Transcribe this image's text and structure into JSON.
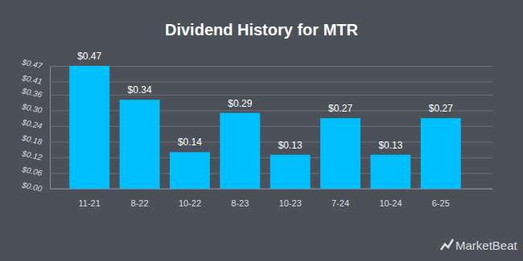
{
  "chart_data": {
    "type": "bar",
    "title": "Dividend History for MTR",
    "categories": [
      "11-21",
      "8-22",
      "10-22",
      "8-23",
      "10-23",
      "7-24",
      "10-24",
      "6-25"
    ],
    "values": [
      0.47,
      0.34,
      0.14,
      0.29,
      0.13,
      0.27,
      0.13,
      0.27
    ],
    "value_labels": [
      "$0.47",
      "$0.34",
      "$0.14",
      "$0.29",
      "$0.13",
      "$0.27",
      "$0.13",
      "$0.27"
    ],
    "data_labels": true,
    "color": "#00bfff",
    "ylim": [
      0,
      0.47
    ],
    "yticks": [
      {
        "value": 0,
        "label": "$0.00"
      },
      {
        "value": 0.06,
        "label": "$0.06"
      },
      {
        "value": 0.12,
        "label": "$0.12"
      },
      {
        "value": 0.18,
        "label": "$0.18"
      },
      {
        "value": 0.24,
        "label": "$0.24"
      },
      {
        "value": 0.3,
        "label": "$0.30"
      },
      {
        "value": 0.36,
        "label": "$0.36"
      },
      {
        "value": 0.41,
        "label": "$0.41"
      },
      {
        "value": 0.47,
        "label": "$0.47"
      }
    ],
    "grid": true,
    "annotations": [
      "MarketBeat"
    ]
  }
}
